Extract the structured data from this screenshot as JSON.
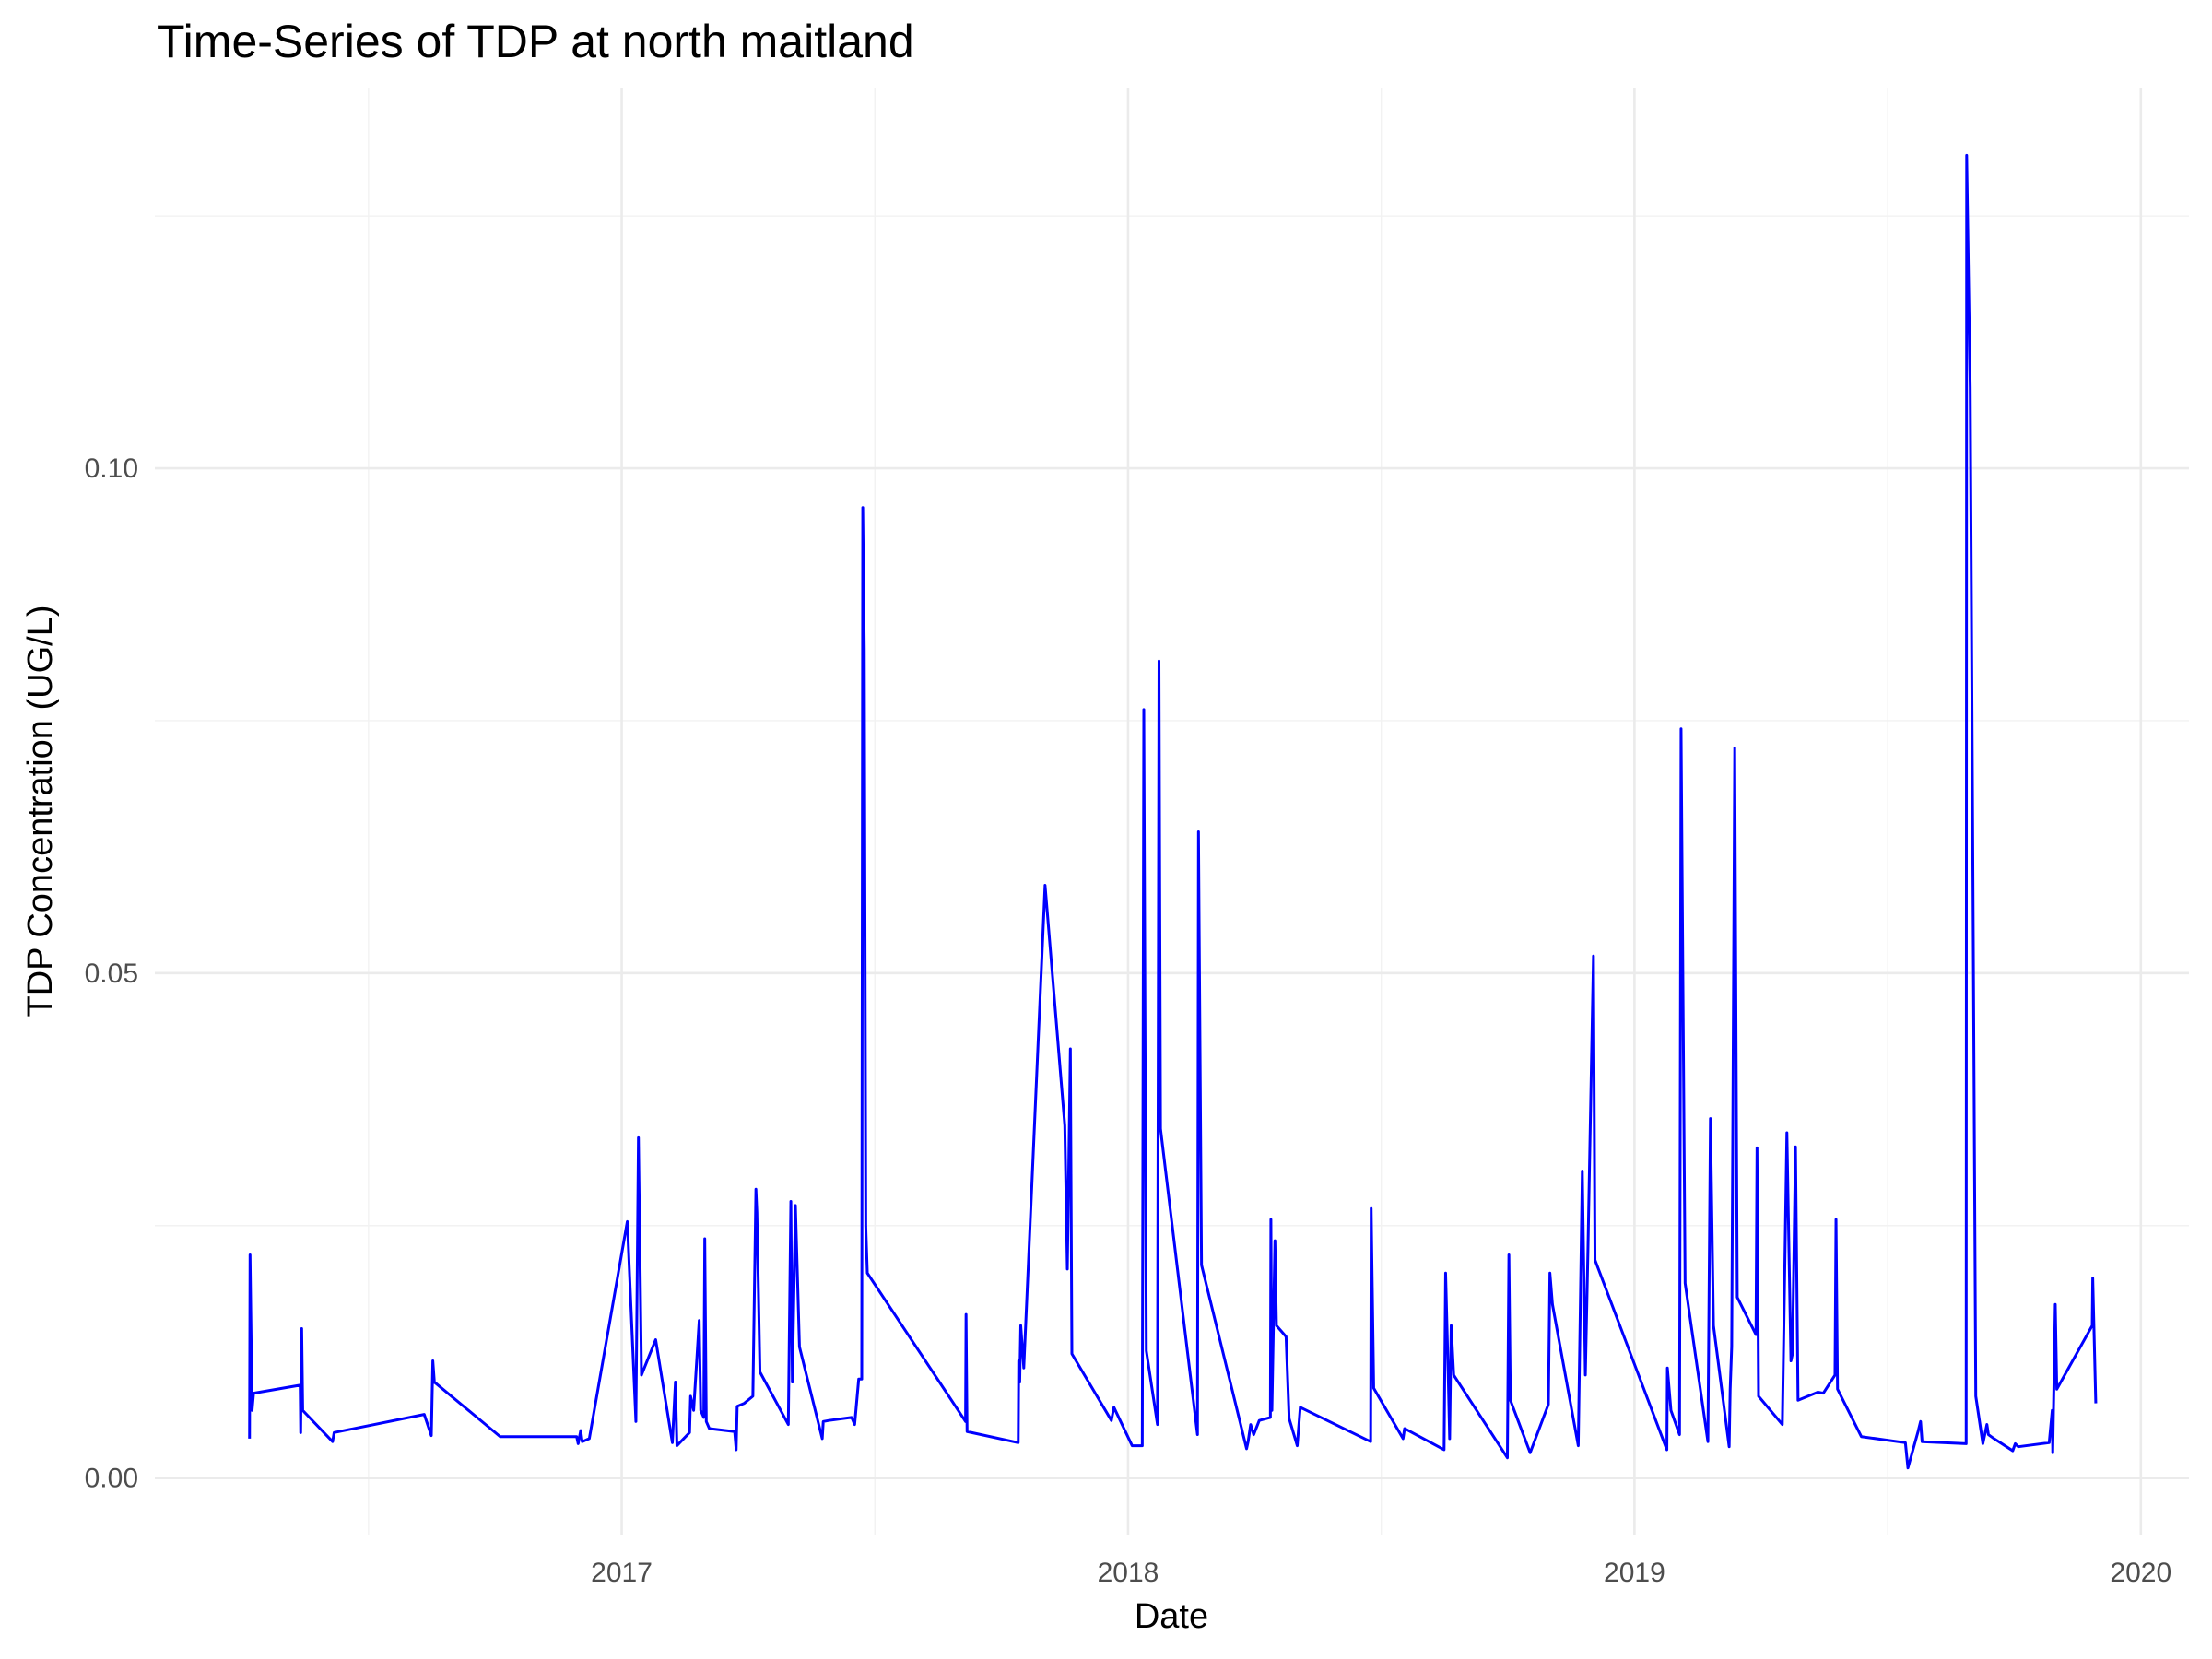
{
  "chart_data": {
    "type": "line",
    "title": "Time-Series of TDP at north maitland",
    "x_label": "Date",
    "y_label": "TDP Concentration (UG/L)",
    "color": "#0000ff",
    "grid": true,
    "xlim": [
      2016.078,
      2020.095
    ],
    "ylim": [
      -0.0056,
      0.1377
    ],
    "xticks": [
      2017,
      2018,
      2019,
      2020
    ],
    "yticks": [
      {
        "value": 0,
        "label": "0.00"
      },
      {
        "value": 0.05,
        "label": "0.05"
      },
      {
        "value": 0.1,
        "label": "0.10"
      }
    ],
    "x": [
      2016.265,
      2016.266,
      2016.27,
      2016.273,
      2016.365,
      2016.366,
      2016.368,
      2016.37,
      2016.429,
      2016.432,
      2016.61,
      2016.624,
      2016.627,
      2016.63,
      2016.76,
      2016.911,
      2016.914,
      2016.919,
      2016.922,
      2016.936,
      2017.011,
      2017.028,
      2017.033,
      2017.039,
      2017.067,
      2017.1,
      2017.106,
      2017.109,
      2017.134,
      2017.136,
      2017.142,
      2017.153,
      2017.156,
      2017.162,
      2017.164,
      2017.167,
      2017.173,
      2017.223,
      2017.226,
      2017.228,
      2017.242,
      2017.259,
      2017.265,
      2017.267,
      2017.273,
      2017.329,
      2017.334,
      2017.337,
      2017.343,
      2017.351,
      2017.396,
      2017.398,
      2017.409,
      2017.454,
      2017.46,
      2017.468,
      2017.474,
      2017.476,
      2017.479,
      2017.482,
      2017.485,
      2017.679,
      2017.68,
      2017.682,
      2017.783,
      2017.784,
      2017.786,
      2017.788,
      2017.794,
      2017.836,
      2017.875,
      2017.88,
      2017.886,
      2017.889,
      2017.967,
      2017.972,
      2018.008,
      2018.028,
      2018.031,
      2018.036,
      2018.058,
      2018.061,
      2018.064,
      2018.137,
      2018.139,
      2018.145,
      2018.234,
      2018.237,
      2018.242,
      2018.248,
      2018.259,
      2018.281,
      2018.282,
      2018.284,
      2018.29,
      2018.293,
      2018.312,
      2018.318,
      2018.334,
      2018.34,
      2018.479,
      2018.48,
      2018.485,
      2018.543,
      2018.546,
      2018.624,
      2018.627,
      2018.632,
      2018.635,
      2018.638,
      2018.643,
      2018.749,
      2018.752,
      2018.755,
      2018.794,
      2018.83,
      2018.833,
      2018.838,
      2018.889,
      2018.897,
      2018.903,
      2018.908,
      2018.919,
      2018.922,
      2019.064,
      2019.065,
      2019.072,
      2019.089,
      2019.092,
      2019.1,
      2019.145,
      2019.15,
      2019.156,
      2019.187,
      2019.189,
      2019.192,
      2019.198,
      2019.203,
      2019.24,
      2019.242,
      2019.245,
      2019.292,
      2019.301,
      2019.309,
      2019.312,
      2019.318,
      2019.323,
      2019.362,
      2019.373,
      2019.396,
      2019.398,
      2019.401,
      2019.448,
      2019.535,
      2019.54,
      2019.56,
      2019.565,
      2019.568,
      2019.655,
      2019.656,
      2019.663,
      2019.674,
      2019.688,
      2019.696,
      2019.699,
      2019.71,
      2019.747,
      2019.752,
      2019.758,
      2019.819,
      2019.825,
      2019.826,
      2019.831,
      2019.834,
      2019.904,
      2019.905,
      2019.911
    ],
    "values": [
      0.0039,
      0.0221,
      0.0067,
      0.0084,
      0.0092,
      0.0045,
      0.0148,
      0.0067,
      0.0036,
      0.0045,
      0.0063,
      0.0042,
      0.0116,
      0.0095,
      0.0041,
      0.0041,
      0.0034,
      0.0047,
      0.0036,
      0.0039,
      0.0254,
      0.0056,
      0.0337,
      0.0102,
      0.0137,
      0.0035,
      0.0095,
      0.0032,
      0.0045,
      0.0081,
      0.0067,
      0.0156,
      0.0067,
      0.006,
      0.0237,
      0.0056,
      0.0049,
      0.0046,
      0.0028,
      0.0071,
      0.0074,
      0.0081,
      0.0286,
      0.0263,
      0.0105,
      0.0053,
      0.0274,
      0.0095,
      0.027,
      0.013,
      0.0039,
      0.0056,
      0.0057,
      0.006,
      0.0053,
      0.0098,
      0.0098,
      0.0961,
      0.0821,
      0.0249,
      0.0203,
      0.0056,
      0.0162,
      0.0046,
      0.0035,
      0.0116,
      0.0095,
      0.0151,
      0.0109,
      0.0587,
      0.0349,
      0.0207,
      0.0425,
      0.0123,
      0.0057,
      0.007,
      0.0032,
      0.0032,
      0.0761,
      0.0126,
      0.0053,
      0.0809,
      0.0346,
      0.0043,
      0.064,
      0.0211,
      0.0029,
      0.0036,
      0.0053,
      0.0043,
      0.0057,
      0.006,
      0.0256,
      0.0067,
      0.0235,
      0.0151,
      0.014,
      0.0059,
      0.0032,
      0.007,
      0.0036,
      0.0267,
      0.0089,
      0.0039,
      0.0049,
      0.0028,
      0.0203,
      0.0106,
      0.0039,
      0.0151,
      0.0102,
      0.002,
      0.0221,
      0.0077,
      0.0025,
      0.0073,
      0.0203,
      0.0172,
      0.0032,
      0.0304,
      0.0102,
      0.0223,
      0.0517,
      0.0216,
      0.0028,
      0.0109,
      0.0067,
      0.0043,
      0.0742,
      0.0193,
      0.0036,
      0.0356,
      0.0151,
      0.0031,
      0.0088,
      0.013,
      0.0723,
      0.0179,
      0.0142,
      0.0327,
      0.0081,
      0.0053,
      0.0342,
      0.0116,
      0.0123,
      0.0328,
      0.0077,
      0.0085,
      0.0084,
      0.0102,
      0.0256,
      0.0088,
      0.0041,
      0.0035,
      0.001,
      0.0046,
      0.0056,
      0.0036,
      0.0034,
      0.131,
      0.108,
      0.0081,
      0.0034,
      0.0053,
      0.0043,
      0.0039,
      0.0027,
      0.0034,
      0.0031,
      0.0035,
      0.0067,
      0.0025,
      0.0172,
      0.0088,
      0.0151,
      0.0198,
      0.0074
    ]
  }
}
